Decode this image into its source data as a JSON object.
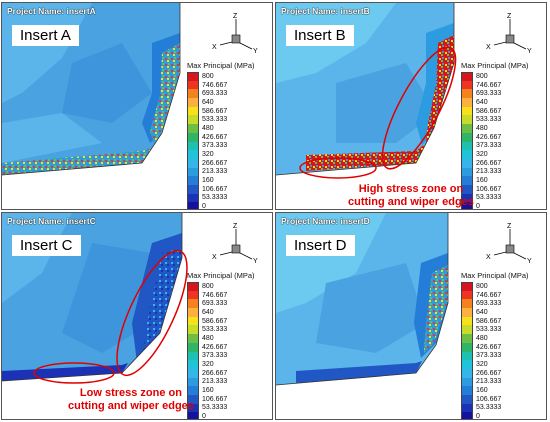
{
  "panels": [
    {
      "project": "Project Name: insertA",
      "label": "Insert A"
    },
    {
      "project": "Project Name: insertB",
      "label": "Insert B"
    },
    {
      "project": "Project Name: insertC",
      "label": "Insert C"
    },
    {
      "project": "Project Name: insertD",
      "label": "Insert D"
    }
  ],
  "legend": {
    "title": "Max Principal (MPa)",
    "levels": [
      "800",
      "746.667",
      "693.333",
      "640",
      "586.667",
      "533.333",
      "480",
      "426.667",
      "373.333",
      "320",
      "266.667",
      "213.333",
      "160",
      "106.667",
      "53.3333",
      "0"
    ],
    "colors": [
      "#d8141e",
      "#ee3524",
      "#f6821f",
      "#fbb040",
      "#f7e11a",
      "#c8db2a",
      "#6cbf43",
      "#2fb56a",
      "#1ec0b0",
      "#21c3da",
      "#35b6e9",
      "#2c9be0",
      "#247dd6",
      "#2157c5",
      "#1c32b6",
      "#16109e"
    ]
  },
  "triad": {
    "z": "Z",
    "x": "X",
    "y": "Y"
  },
  "annotations": {
    "b_text": "High stress zone on cutting and wiper edges",
    "c_text": "Low stress zone on cutting and wiper edges",
    "ellipse_color": "#e00000"
  }
}
